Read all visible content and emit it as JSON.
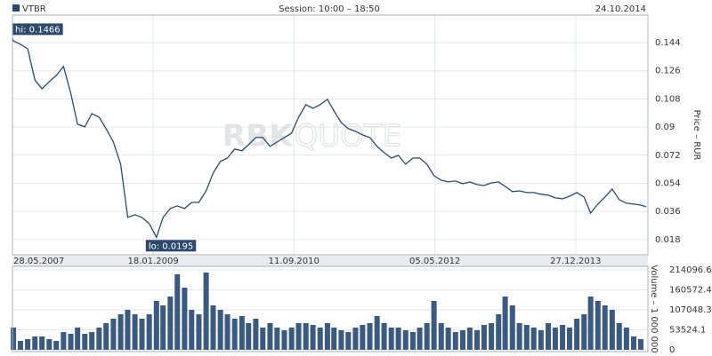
{
  "header": {
    "ticker": "VTBR",
    "session": "Session: 10:00 – 18:50",
    "date": "24.10.2014"
  },
  "chart_data": [
    {
      "type": "line",
      "y_label": "Price – RUR",
      "watermark": [
        "RBK",
        "QUOTE"
      ],
      "hi_label": "hi: 0.1466",
      "lo_label": "lo: 0.0195",
      "color": "#2c4a6e",
      "xlim": [
        "28.05.2007",
        "24.10.2014"
      ],
      "xticks": [
        "28.05.2007",
        "18.01.2009",
        "11.09.2010",
        "05.05.2012",
        "27.12.2013"
      ],
      "ylim": [
        0.0083,
        0.1616
      ],
      "yticks": [
        0.018,
        0.036,
        0.054,
        0.072,
        0.09,
        0.108,
        0.126,
        0.144
      ],
      "x": [
        "28.05.2007",
        "01.06.2007",
        "01.07.2007",
        "01.08.2007",
        "01.09.2007",
        "01.10.2007",
        "01.11.2007",
        "01.12.2007",
        "01.01.2008",
        "01.02.2008",
        "01.03.2008",
        "01.04.2008",
        "01.05.2008",
        "01.06.2008",
        "01.07.2008",
        "01.08.2008",
        "01.09.2008",
        "01.10.2008",
        "01.11.2008",
        "01.12.2008",
        "01.01.2009",
        "01.02.2009",
        "01.03.2009",
        "01.04.2009",
        "01.05.2009",
        "01.06.2009",
        "01.07.2009",
        "01.08.2009",
        "01.09.2009",
        "01.10.2009",
        "01.11.2009",
        "01.12.2009",
        "01.01.2010",
        "01.02.2010",
        "01.03.2010",
        "01.04.2010",
        "01.05.2010",
        "01.06.2010",
        "01.07.2010",
        "01.08.2010",
        "01.09.2010",
        "01.10.2010",
        "01.11.2010",
        "01.12.2010",
        "01.01.2011",
        "01.02.2011",
        "01.03.2011",
        "01.04.2011",
        "01.05.2011",
        "01.06.2011",
        "01.07.2011",
        "01.08.2011",
        "01.09.2011",
        "01.10.2011",
        "01.11.2011",
        "01.12.2011",
        "01.01.2012",
        "01.02.2012",
        "01.03.2012",
        "01.04.2012",
        "01.05.2012",
        "01.06.2012",
        "01.07.2012",
        "01.08.2012",
        "01.09.2012",
        "01.10.2012",
        "01.11.2012",
        "01.12.2012",
        "01.01.2013",
        "01.02.2013",
        "01.03.2013",
        "01.04.2013",
        "01.05.2013",
        "01.06.2013",
        "01.07.2013",
        "01.08.2013",
        "01.09.2013",
        "01.10.2013",
        "01.11.2013",
        "01.12.2013",
        "01.01.2014",
        "01.02.2014",
        "01.03.2014",
        "01.04.2014",
        "01.05.2014",
        "01.06.2014",
        "01.07.2014",
        "01.08.2014",
        "01.09.2014",
        "01.10.2014",
        "24.10.2014"
      ],
      "values": [
        0.1466,
        0.1451,
        0.1429,
        0.14,
        0.12,
        0.1145,
        0.119,
        0.123,
        0.1287,
        0.1117,
        0.0918,
        0.0901,
        0.0986,
        0.0963,
        0.089,
        0.0804,
        0.0662,
        0.0322,
        0.0339,
        0.0322,
        0.0282,
        0.0195,
        0.0322,
        0.0379,
        0.0396,
        0.0379,
        0.0418,
        0.0418,
        0.0492,
        0.0606,
        0.068,
        0.0702,
        0.0759,
        0.0748,
        0.0787,
        0.0833,
        0.0833,
        0.0776,
        0.0804,
        0.0833,
        0.0861,
        0.0963,
        0.1043,
        0.102,
        0.1043,
        0.1077,
        0.1003,
        0.0929,
        0.089,
        0.0872,
        0.085,
        0.0833,
        0.0776,
        0.0736,
        0.0702,
        0.0719,
        0.0662,
        0.0702,
        0.0702,
        0.0662,
        0.0589,
        0.056,
        0.0549,
        0.0555,
        0.0538,
        0.0549,
        0.0532,
        0.0526,
        0.0543,
        0.0549,
        0.0521,
        0.0487,
        0.0492,
        0.0481,
        0.0481,
        0.047,
        0.0464,
        0.0447,
        0.0441,
        0.0458,
        0.0481,
        0.0452,
        0.035,
        0.0407,
        0.0452,
        0.0504,
        0.0436,
        0.0413,
        0.0407,
        0.0401,
        0.039
      ]
    },
    {
      "type": "bar",
      "y_label": "Volume – 1 000 000",
      "color": "#3b5a7f",
      "xlim": [
        "28.05.2007",
        "24.10.2014"
      ],
      "ylim": [
        0,
        214096.6
      ],
      "yticks": [
        0,
        53524.1,
        107048.3,
        160572.4,
        214096.6
      ],
      "x": [
        "01.06.2007",
        "01.07.2007",
        "01.08.2007",
        "01.09.2007",
        "01.10.2007",
        "01.11.2007",
        "01.12.2007",
        "01.01.2008",
        "01.02.2008",
        "01.03.2008",
        "01.04.2008",
        "01.05.2008",
        "01.06.2008",
        "01.07.2008",
        "01.08.2008",
        "01.09.2008",
        "01.10.2008",
        "01.11.2008",
        "01.12.2008",
        "01.01.2009",
        "01.02.2009",
        "01.03.2009",
        "01.04.2009",
        "01.05.2009",
        "01.06.2009",
        "01.07.2009",
        "01.08.2009",
        "01.09.2009",
        "01.10.2009",
        "01.11.2009",
        "01.12.2009",
        "01.01.2010",
        "01.02.2010",
        "01.03.2010",
        "01.04.2010",
        "01.05.2010",
        "01.06.2010",
        "01.07.2010",
        "01.08.2010",
        "01.09.2010",
        "01.10.2010",
        "01.11.2010",
        "01.12.2010",
        "01.01.2011",
        "01.02.2011",
        "01.03.2011",
        "01.04.2011",
        "01.05.2011",
        "01.06.2011",
        "01.07.2011",
        "01.08.2011",
        "01.09.2011",
        "01.10.2011",
        "01.11.2011",
        "01.12.2011",
        "01.01.2012",
        "01.02.2012",
        "01.03.2012",
        "01.04.2012",
        "01.05.2012",
        "01.06.2012",
        "01.07.2012",
        "01.08.2012",
        "01.09.2012",
        "01.10.2012",
        "01.11.2012",
        "01.12.2012",
        "01.01.2013",
        "01.02.2013",
        "01.03.2013",
        "01.04.2013",
        "01.05.2013",
        "01.06.2013",
        "01.07.2013",
        "01.08.2013",
        "01.09.2013",
        "01.10.2013",
        "01.11.2013",
        "01.12.2013",
        "01.01.2014",
        "01.02.2014",
        "01.03.2014",
        "01.04.2014",
        "01.05.2014",
        "01.06.2014",
        "01.07.2014",
        "01.08.2014",
        "01.09.2014",
        "01.10.2014"
      ],
      "values": [
        59471,
        23789,
        28546,
        35683,
        35683,
        28546,
        23789,
        47577,
        42819,
        59471,
        42819,
        47577,
        59471,
        71366,
        83260,
        95154,
        107048,
        95154,
        83260,
        95154,
        130837,
        118943,
        142731,
        202202,
        166520,
        107048,
        95154,
        206960,
        118943,
        107048,
        95154,
        83260,
        90396,
        71366,
        83260,
        59471,
        71366,
        59471,
        52335,
        59471,
        71366,
        71366,
        66608,
        59471,
        71366,
        59471,
        52335,
        47577,
        59471,
        66608,
        71366,
        90396,
        71366,
        59471,
        59471,
        52335,
        47577,
        59471,
        71366,
        130837,
        71366,
        59471,
        47577,
        52335,
        59471,
        52335,
        66608,
        71366,
        95154,
        142731,
        118943,
        71366,
        66608,
        59471,
        52335,
        71366,
        59471,
        66608,
        59471,
        83260,
        95154,
        142731,
        130837,
        118943,
        107048,
        71366,
        59471,
        35683,
        28546
      ]
    }
  ]
}
